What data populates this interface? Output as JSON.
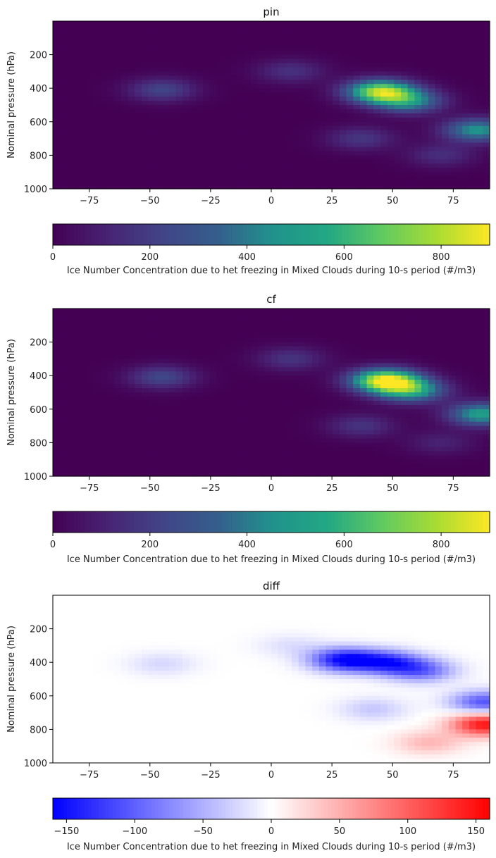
{
  "chart_data": [
    {
      "type": "heatmap",
      "title": "pin",
      "ylabel": "Nominal pressure (hPa)",
      "xlabel": "",
      "x_range": [
        -90,
        90
      ],
      "y_range": [
        1000,
        0
      ],
      "x_ticks": [
        {
          "value": -75,
          "label": "−75"
        },
        {
          "value": -50,
          "label": "−50"
        },
        {
          "value": -25,
          "label": "−25"
        },
        {
          "value": 0,
          "label": "0"
        },
        {
          "value": 25,
          "label": "25"
        },
        {
          "value": 50,
          "label": "50"
        },
        {
          "value": 75,
          "label": "75"
        }
      ],
      "y_ticks": [
        {
          "value": 200,
          "label": "200"
        },
        {
          "value": 400,
          "label": "400"
        },
        {
          "value": 600,
          "label": "600"
        },
        {
          "value": 800,
          "label": "800"
        },
        {
          "value": 1000,
          "label": "1000"
        }
      ],
      "colormap": "viridis",
      "colorbar": {
        "range": [
          0,
          900
        ],
        "ticks": [
          {
            "value": 0,
            "label": "0"
          },
          {
            "value": 200,
            "label": "200"
          },
          {
            "value": 400,
            "label": "400"
          },
          {
            "value": 600,
            "label": "600"
          },
          {
            "value": 800,
            "label": "800"
          }
        ],
        "label": "Ice Number Concentration due to het freezing in Mixed Clouds during 10-s period (#/m3)"
      },
      "features": [
        {
          "lat": -45,
          "p": 410,
          "peak": 230
        },
        {
          "lat": 8,
          "p": 300,
          "peak": 160
        },
        {
          "lat": 45,
          "p": 420,
          "peak": 780
        },
        {
          "lat": 57,
          "p": 480,
          "peak": 420
        },
        {
          "lat": 85,
          "p": 650,
          "peak": 470
        },
        {
          "lat": 70,
          "p": 800,
          "peak": 150
        },
        {
          "lat": 37,
          "p": 700,
          "peak": 180
        }
      ]
    },
    {
      "type": "heatmap",
      "title": "cf",
      "ylabel": "Nominal pressure (hPa)",
      "xlabel": "",
      "x_range": [
        -90,
        90
      ],
      "y_range": [
        1000,
        0
      ],
      "x_ticks": [
        {
          "value": -75,
          "label": "−75"
        },
        {
          "value": -50,
          "label": "−50"
        },
        {
          "value": -25,
          "label": "−25"
        },
        {
          "value": 0,
          "label": "0"
        },
        {
          "value": 25,
          "label": "25"
        },
        {
          "value": 50,
          "label": "50"
        },
        {
          "value": 75,
          "label": "75"
        }
      ],
      "y_ticks": [
        {
          "value": 200,
          "label": "200"
        },
        {
          "value": 400,
          "label": "400"
        },
        {
          "value": 600,
          "label": "600"
        },
        {
          "value": 800,
          "label": "800"
        },
        {
          "value": 1000,
          "label": "1000"
        }
      ],
      "colormap": "viridis",
      "colorbar": {
        "range": [
          0,
          900
        ],
        "ticks": [
          {
            "value": 0,
            "label": "0"
          },
          {
            "value": 200,
            "label": "200"
          },
          {
            "value": 400,
            "label": "400"
          },
          {
            "value": 600,
            "label": "600"
          },
          {
            "value": 800,
            "label": "800"
          }
        ],
        "label": "Ice Number Concentration due to het freezing in Mixed Clouds during 10-s period (#/m3)"
      },
      "features": [
        {
          "lat": -45,
          "p": 410,
          "peak": 240
        },
        {
          "lat": 8,
          "p": 300,
          "peak": 170
        },
        {
          "lat": 47,
          "p": 430,
          "peak": 880
        },
        {
          "lat": 58,
          "p": 490,
          "peak": 500
        },
        {
          "lat": 87,
          "p": 630,
          "peak": 520
        },
        {
          "lat": 70,
          "p": 800,
          "peak": 110
        },
        {
          "lat": 37,
          "p": 700,
          "peak": 170
        }
      ]
    },
    {
      "type": "heatmap",
      "title": "diff",
      "ylabel": "Nominal pressure (hPa)",
      "xlabel": "",
      "x_range": [
        -90,
        90
      ],
      "y_range": [
        1000,
        0
      ],
      "x_ticks": [
        {
          "value": -75,
          "label": "−75"
        },
        {
          "value": -50,
          "label": "−50"
        },
        {
          "value": -25,
          "label": "−25"
        },
        {
          "value": 0,
          "label": "0"
        },
        {
          "value": 25,
          "label": "25"
        },
        {
          "value": 50,
          "label": "50"
        },
        {
          "value": 75,
          "label": "75"
        }
      ],
      "y_ticks": [
        {
          "value": 200,
          "label": "200"
        },
        {
          "value": 400,
          "label": "400"
        },
        {
          "value": 600,
          "label": "600"
        },
        {
          "value": 800,
          "label": "800"
        },
        {
          "value": 1000,
          "label": "1000"
        }
      ],
      "colormap": "bwr",
      "colorbar": {
        "range": [
          -160,
          160
        ],
        "ticks": [
          {
            "value": -150,
            "label": "−150"
          },
          {
            "value": -100,
            "label": "−100"
          },
          {
            "value": -50,
            "label": "−50"
          },
          {
            "value": 0,
            "label": "0"
          },
          {
            "value": 50,
            "label": "50"
          },
          {
            "value": 100,
            "label": "100"
          },
          {
            "value": 150,
            "label": "150"
          }
        ],
        "label": "Ice Number Concentration due to het freezing in Mixed Clouds during 10-s period (#/m3)"
      },
      "features": [
        {
          "lat": 30,
          "p": 385,
          "peak": -150
        },
        {
          "lat": 48,
          "p": 400,
          "peak": -120
        },
        {
          "lat": 62,
          "p": 450,
          "peak": -90
        },
        {
          "lat": -45,
          "p": 410,
          "peak": -25
        },
        {
          "lat": 8,
          "p": 300,
          "peak": -20
        },
        {
          "lat": 88,
          "p": 770,
          "peak": 150
        },
        {
          "lat": 65,
          "p": 880,
          "peak": 45
        },
        {
          "lat": 88,
          "p": 640,
          "peak": -110
        },
        {
          "lat": 42,
          "p": 680,
          "peak": -35
        }
      ]
    }
  ]
}
